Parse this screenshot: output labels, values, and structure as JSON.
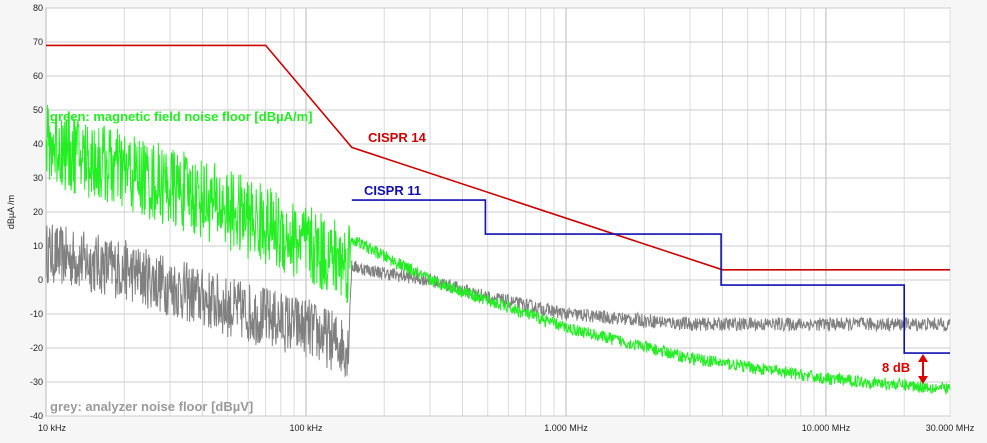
{
  "chart_data": {
    "type": "line",
    "title": "",
    "xlabel": "",
    "ylabel": "dBµA /m",
    "x_scale": "log",
    "x_unit": "Hz",
    "xlim": [
      10000,
      30000000
    ],
    "ylim": [
      -40,
      80
    ],
    "grid": true,
    "x_ticks": [
      {
        "value": 10000,
        "label": "10 kHz"
      },
      {
        "value": 100000,
        "label": "100 kHz"
      },
      {
        "value": 1000000,
        "label": "1.000 MHz"
      },
      {
        "value": 10000000,
        "label": "10.000 MHz"
      },
      {
        "value": 30000000,
        "label": "30.000 MHz"
      }
    ],
    "y_ticks": [
      80,
      70,
      60,
      50,
      40,
      30,
      20,
      10,
      0,
      -10,
      -20,
      -30,
      -40
    ],
    "series": [
      {
        "name": "CISPR 14",
        "color": "#cc0000",
        "x": [
          10000,
          70000,
          150000,
          4000000,
          30000000
        ],
        "y": [
          69,
          69,
          39,
          3,
          3
        ]
      },
      {
        "name": "CISPR 11",
        "color": "#1010b0",
        "x": [
          150000,
          490000,
          490000,
          3950000,
          3950000,
          20000000,
          20000000,
          30000000
        ],
        "y": [
          23.5,
          23.5,
          13.5,
          13.5,
          -1.5,
          -1.5,
          -21.5,
          -21.5
        ]
      },
      {
        "name": "green: magnetic field noise floor [dBµA/m]",
        "color": "#22ee22",
        "x": [
          10000,
          20000,
          40000,
          70000,
          100000,
          145000,
          150000,
          200000,
          300000,
          500000,
          1000000,
          3000000,
          10000000,
          30000000
        ],
        "y": [
          40,
          32,
          24,
          16,
          10,
          5,
          12,
          7,
          0,
          -6,
          -14,
          -23,
          -29,
          -32
        ]
      },
      {
        "name": "grey: analyzer noise floor [dBµV]",
        "color": "#808080",
        "x": [
          10000,
          20000,
          50000,
          100000,
          145000,
          150000,
          200000,
          300000,
          500000,
          1000000,
          3000000,
          10000000,
          30000000
        ],
        "y": [
          8,
          3,
          -8,
          -14,
          -20,
          4,
          2,
          0,
          -5,
          -10,
          -13,
          -13,
          -13
        ]
      }
    ],
    "annotations": [
      {
        "text": "CISPR 14",
        "color": "#cc0000"
      },
      {
        "text": "CISPR 11",
        "color": "#1010b0"
      },
      {
        "text": "green: magnetic field noise floor [dBµA/m]",
        "color": "#22ee22"
      },
      {
        "text": "grey: analyzer noise floor [dBµV]",
        "color": "#9a9a9a"
      },
      {
        "text": "8 dB",
        "color": "#dd0000"
      }
    ]
  }
}
